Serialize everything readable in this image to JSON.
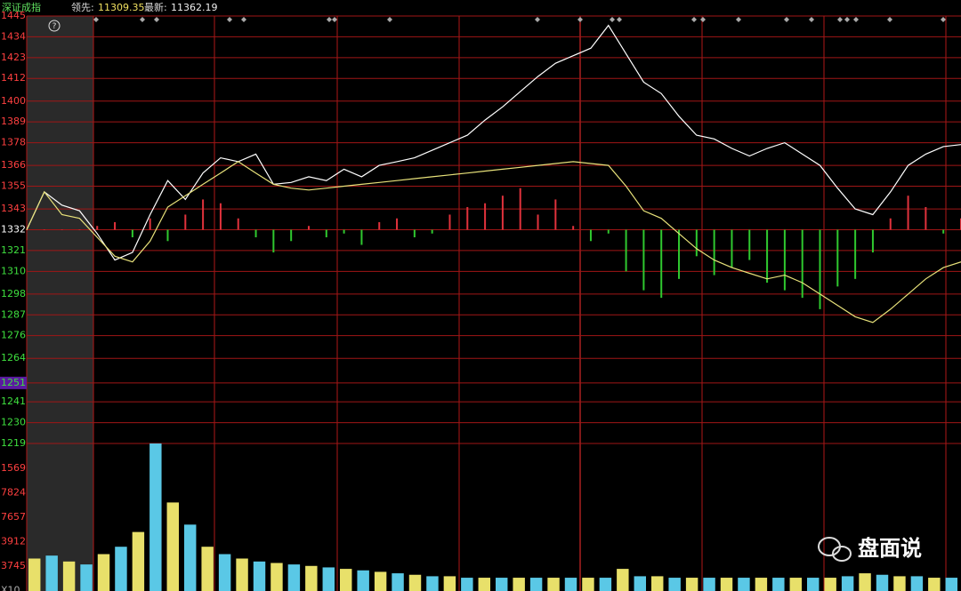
{
  "chart_data": {
    "type": "line",
    "index_name": "深证成指",
    "lead_label": "领先:",
    "lead_value": 11309.35,
    "latest_label": "最新:",
    "latest_value": 11362.19,
    "ylim": [
      1219,
      1445
    ],
    "yticks": [
      1445,
      1434,
      1423,
      1412,
      1400,
      1389,
      1378,
      1366,
      1355,
      1343,
      1332,
      1321,
      1310,
      1298,
      1287,
      1276,
      1264,
      1251,
      1241,
      1230,
      1219
    ],
    "highlighted_tick": 1251,
    "grid": true,
    "series": [
      {
        "color": "#ffffff",
        "values": [
          1332,
          1352,
          1345,
          1342,
          1330,
          1316,
          1320,
          1340,
          1358,
          1348,
          1362,
          1370,
          1368,
          1372,
          1356,
          1357,
          1360,
          1358,
          1364,
          1360,
          1366,
          1368,
          1370,
          1374,
          1378,
          1382,
          1390,
          1397,
          1405,
          1413,
          1420,
          1424,
          1428,
          1440,
          1425,
          1410,
          1404,
          1392,
          1382,
          1380,
          1375,
          1371,
          1375,
          1378,
          1372,
          1366,
          1354,
          1343,
          1340,
          1352,
          1366,
          1372,
          1376,
          1377
        ]
      },
      {
        "color": "#e8e27a",
        "values": [
          1332,
          1352,
          1340,
          1338,
          1328,
          1318,
          1315,
          1326,
          1344,
          1350,
          1356,
          1362,
          1368,
          1362,
          1356,
          1354,
          1353,
          1354,
          1355,
          1356,
          1357,
          1358,
          1359,
          1360,
          1361,
          1362,
          1363,
          1364,
          1365,
          1366,
          1367,
          1368,
          1367,
          1366,
          1355,
          1342,
          1338,
          1330,
          1322,
          1316,
          1312,
          1309,
          1306,
          1308,
          1304,
          1298,
          1292,
          1286,
          1283,
          1290,
          1298,
          1306,
          1312,
          1315
        ]
      }
    ],
    "bars": [
      1332,
      1332,
      1332,
      1332,
      1334,
      1336,
      1328,
      1338,
      1326,
      1340,
      1348,
      1346,
      1338,
      1328,
      1320,
      1326,
      1334,
      1328,
      1330,
      1324,
      1336,
      1338,
      1328,
      1330,
      1340,
      1344,
      1346,
      1350,
      1354,
      1340,
      1348,
      1334,
      1326,
      1330,
      1310,
      1300,
      1296,
      1306,
      1318,
      1308,
      1312,
      1316,
      1304,
      1300,
      1296,
      1290,
      1302,
      1306,
      1320,
      1338,
      1350,
      1344,
      1330,
      1338
    ],
    "up_color": "#e0323c",
    "down_color": "#2fc82f",
    "volume_axis_labels": [
      "1569",
      "7824",
      "7657",
      "3912",
      "3745",
      "X10"
    ],
    "volume_ylim": [
      0,
      100
    ],
    "volume": [
      22,
      24,
      20,
      18,
      25,
      30,
      40,
      100,
      60,
      45,
      30,
      25,
      22,
      20,
      19,
      18,
      17,
      16,
      15,
      14,
      13,
      12,
      11,
      10,
      10,
      9,
      9,
      9,
      9,
      9,
      9,
      9,
      9,
      9,
      15,
      10,
      10,
      9,
      9,
      9,
      9,
      9,
      9,
      9,
      9,
      9,
      9,
      10,
      12,
      11,
      10,
      10,
      9,
      9
    ],
    "volume_colors": [
      "#e8e06a",
      "#5ac8e6"
    ],
    "watermark": "盘面说"
  }
}
